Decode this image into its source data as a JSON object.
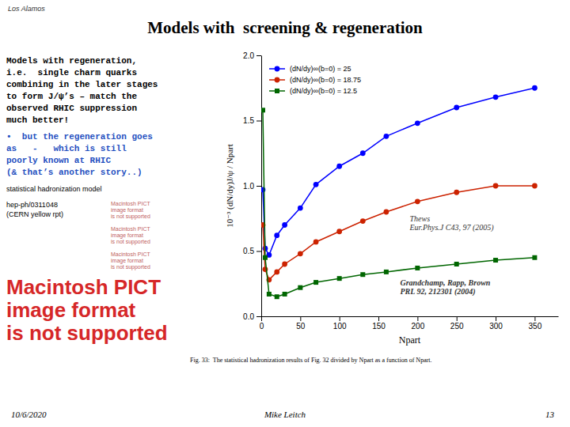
{
  "chart_data": {
    "type": "line",
    "title": "Models with  screening & regeneration",
    "x_label": "Npart",
    "y_label": "10⁻³ (dN/dy)J/ψ / Npart",
    "x": [
      2,
      5,
      10,
      20,
      30,
      50,
      70,
      100,
      130,
      160,
      200,
      250,
      300,
      350
    ],
    "series": [
      {
        "name": "(dN/dy)∞(b=0) = 25",
        "color": "#0000ff",
        "marker": "circle",
        "values": [
          0.97,
          0.52,
          0.47,
          0.62,
          0.7,
          0.83,
          1.01,
          1.15,
          1.25,
          1.38,
          1.48,
          1.6,
          1.68,
          1.75
        ]
      },
      {
        "name": "(dN/dy)∞(b=0) = 18.75",
        "color": "#cc2200",
        "marker": "circle",
        "values": [
          0.7,
          0.36,
          0.28,
          0.34,
          0.4,
          0.48,
          0.57,
          0.65,
          0.73,
          0.8,
          0.88,
          0.95,
          1.0,
          1.0
        ]
      },
      {
        "name": "(dN/dy)∞(b=0) = 12.5",
        "color": "#006600",
        "marker": "square",
        "values": [
          1.58,
          0.45,
          0.17,
          0.15,
          0.17,
          0.22,
          0.26,
          0.29,
          0.32,
          0.34,
          0.37,
          0.4,
          0.43,
          0.45
        ]
      }
    ],
    "xlim": [
      0,
      380
    ],
    "ylim": [
      0,
      2.0
    ],
    "xticks": [
      0,
      50,
      100,
      150,
      200,
      250,
      300,
      350
    ],
    "yticks": [
      {
        "value": 0,
        "label": "0.0"
      },
      0.5,
      {
        "value": 1,
        "label": "1.0"
      },
      1.5,
      {
        "value": 2,
        "label": "2.0"
      }
    ],
    "grid": false,
    "legend": "upper left",
    "annotations": [
      "Los Alamos",
      "Models with regeneration,",
      "i.e.  single charm quarks",
      "combining in the later stages",
      "to form J/ψ’s – match the",
      "observed RHIC suppression",
      "much better!",
      "•  but the regeneration goes",
      "as   -   which is still",
      "poorly known at RHIC",
      "(& that’s another story..)",
      "statistical hadronization model",
      "hep-ph/0311048\n(CERN yellow rpt)",
      "Macintosh PICT\nimage format\nis not supported",
      "Macintosh PICT\nimage format\nis not supported",
      "Macintosh PICT\nimage format\nis not supported",
      "Macintosh PICT\nimage format\nis not supported",
      "Thews\nEur.Phys.J C43, 97 (2005)",
      "Grandchamp, Rapp, Brown\nPRL 92, 212301 (2004)",
      "Fig. 33:  The statistical hadronization results of Fig. 32 divided by Npart as a function of Npart.",
      "10/6/2020",
      "Mike Leitch",
      "13"
    ]
  }
}
